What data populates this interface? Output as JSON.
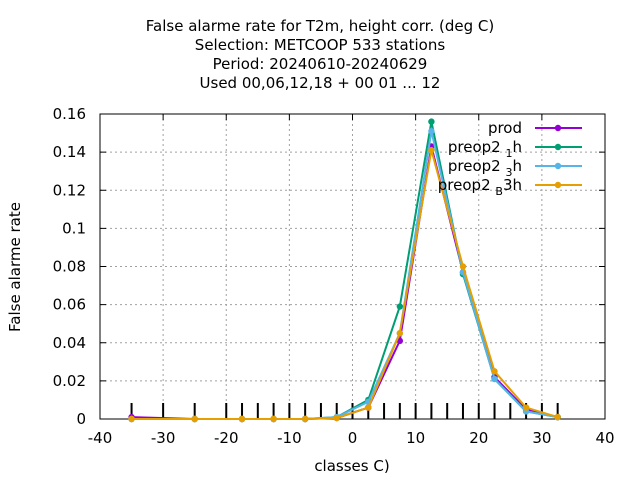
{
  "chart_data": {
    "type": "line",
    "title_lines": [
      "False alarme rate  for T2m, height corr. (deg C)",
      "Selection: METCOOP    533 stations",
      "Period: 20240610-20240629",
      "Used  00,06,12,18 + 00 01 ... 12"
    ],
    "xlabel": "classes C)",
    "ylabel": "False alarme rate",
    "xlim": [
      -40,
      40
    ],
    "ylim": [
      0,
      0.16
    ],
    "xticks": [
      -40,
      -30,
      -20,
      -10,
      0,
      10,
      20,
      30,
      40
    ],
    "yticks": [
      0,
      0.02,
      0.04,
      0.06,
      0.08,
      0.1,
      0.12,
      0.14,
      0.16
    ],
    "ytick_labels": [
      "0",
      "0.02",
      "0.04",
      "0.06",
      "0.08",
      "0.1",
      "0.12",
      "0.14",
      "0.16"
    ],
    "class_marks": [
      -35,
      -30,
      -25,
      -20,
      -17.5,
      -15,
      -12.5,
      -10,
      -7.5,
      -5,
      -2.5,
      0,
      2.5,
      5,
      7.5,
      10,
      12.5,
      15,
      17.5,
      20,
      22.5,
      25,
      27.5,
      30,
      32.5
    ],
    "grid": true,
    "legend_position": "top-right",
    "series": [
      {
        "name": "prod",
        "legend": {
          "main": "prod",
          "sub": "",
          "tail": ""
        },
        "color": "#9400d3",
        "x": [
          -35,
          -25,
          -17.5,
          -12.5,
          -7.5,
          -2.5,
          2.5,
          7.5,
          12.5,
          17.5,
          22.5,
          27.5,
          32.5
        ],
        "y": [
          0.001,
          0.0,
          0.0,
          0.0,
          0.0,
          0.0005,
          0.006,
          0.041,
          0.143,
          0.077,
          0.022,
          0.005,
          0.001
        ]
      },
      {
        "name": "preop2 1 h",
        "legend": {
          "main": "preop2 ",
          "sub": "1",
          "tail": "h"
        },
        "color": "#009e73",
        "x": [
          -35,
          -25,
          -17.5,
          -12.5,
          -7.5,
          -2.5,
          2.5,
          7.5,
          12.5,
          17.5,
          22.5,
          27.5,
          32.5
        ],
        "y": [
          0.0,
          0.0,
          0.0,
          0.0,
          0.0,
          0.001,
          0.01,
          0.059,
          0.156,
          0.076,
          0.021,
          0.004,
          0.001
        ]
      },
      {
        "name": "preop2 3 h",
        "legend": {
          "main": "preop2 ",
          "sub": "3",
          "tail": "h"
        },
        "color": "#56b4e9",
        "x": [
          -35,
          -25,
          -17.5,
          -12.5,
          -7.5,
          -2.5,
          2.5,
          7.5,
          12.5,
          17.5,
          22.5,
          27.5,
          32.5
        ],
        "y": [
          0.0,
          0.0,
          0.0,
          0.0,
          0.0,
          0.001,
          0.009,
          0.045,
          0.151,
          0.077,
          0.021,
          0.004,
          0.001
        ]
      },
      {
        "name": "preop2 B 3h",
        "legend": {
          "main": "preop2 ",
          "sub": "B",
          "tail": "3h"
        },
        "color": "#e69f00",
        "x": [
          -35,
          -25,
          -17.5,
          -12.5,
          -7.5,
          -2.5,
          2.5,
          7.5,
          12.5,
          17.5,
          22.5,
          27.5,
          32.5
        ],
        "y": [
          0.0,
          0.0,
          0.0,
          0.0,
          0.0,
          0.0005,
          0.006,
          0.045,
          0.141,
          0.08,
          0.025,
          0.006,
          0.001
        ]
      }
    ]
  }
}
